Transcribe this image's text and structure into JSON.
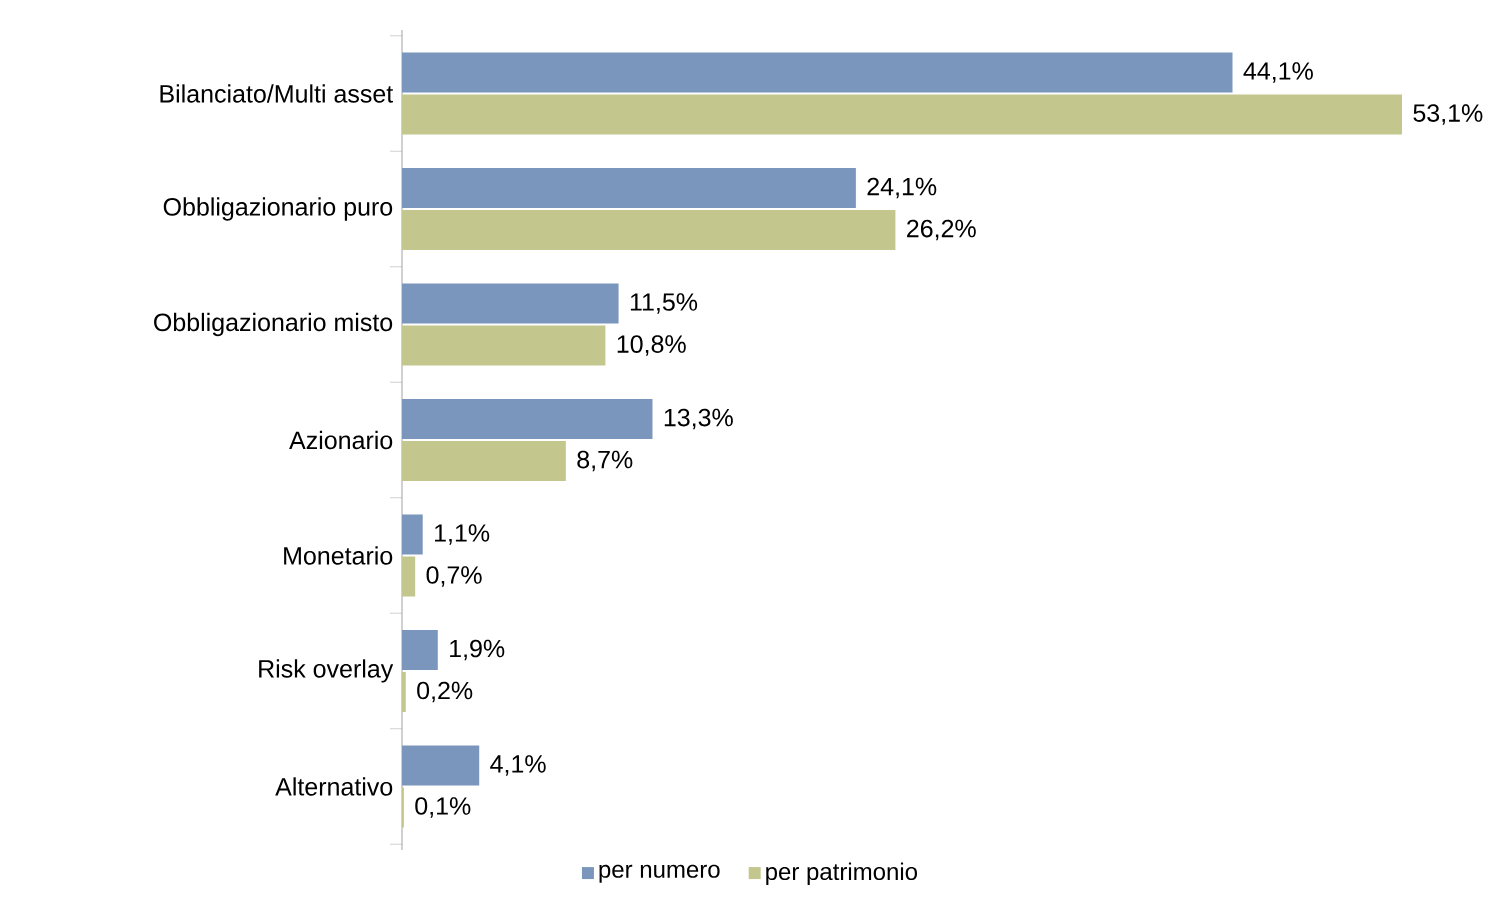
{
  "chart_data": {
    "type": "bar",
    "orientation": "horizontal",
    "categories": [
      "Bilanciato/Multi asset",
      "Obbligazionario puro",
      "Obbligazionario misto",
      "Azionario",
      "Monetario",
      "Risk overlay",
      "Alternativo"
    ],
    "series": [
      {
        "name": "per numero",
        "color": "#7a96bd",
        "values": [
          44.1,
          24.1,
          11.5,
          13.3,
          1.1,
          1.9,
          4.1
        ],
        "value_labels": [
          "44,1%",
          "24,1%",
          "11,5%",
          "13,3%",
          "1,1%",
          "1,9%",
          "4,1%"
        ]
      },
      {
        "name": "per patrimonio",
        "color": "#c3c78e",
        "values": [
          53.1,
          26.2,
          10.8,
          8.7,
          0.7,
          0.2,
          0.1
        ],
        "value_labels": [
          "53,1%",
          "26,2%",
          "10,8%",
          "8,7%",
          "0,7%",
          "0,2%",
          "0,1%"
        ]
      }
    ],
    "legend": "bottom"
  }
}
